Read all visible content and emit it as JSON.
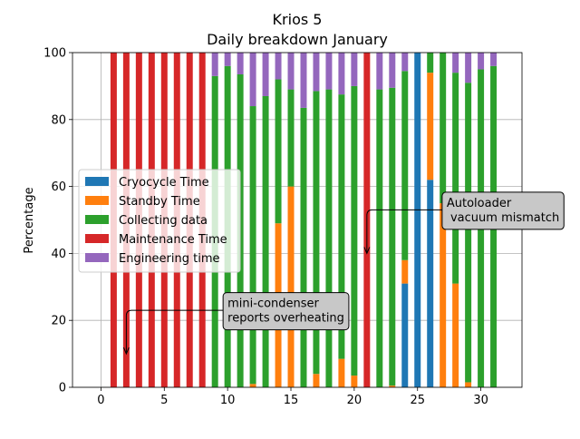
{
  "chart_data": {
    "type": "bar",
    "stacked": true,
    "title": "Krios 5",
    "subtitle": "Daily breakdown January",
    "xlabel": "",
    "ylabel": "Percentage",
    "xlim": [
      -2.25,
      33.25
    ],
    "ylim": [
      0,
      100
    ],
    "xticks": [
      "0",
      "5",
      "10",
      "15",
      "20",
      "25",
      "30"
    ],
    "yticks": [
      "0",
      "20",
      "40",
      "60",
      "80",
      "100"
    ],
    "grid": true,
    "legend_position": "center-left",
    "x": [
      1,
      2,
      3,
      4,
      5,
      6,
      7,
      8,
      9,
      10,
      11,
      12,
      13,
      14,
      15,
      16,
      17,
      18,
      19,
      20,
      21,
      22,
      23,
      24,
      25,
      26,
      27,
      28,
      29,
      30,
      31
    ],
    "series": [
      {
        "name": "Cryocycle Time",
        "color": "#1f77b4",
        "values": [
          0,
          0,
          0,
          0,
          0,
          0,
          0,
          0,
          0,
          0,
          0,
          0,
          0,
          0,
          0,
          0,
          0,
          0,
          0,
          0,
          0,
          0,
          0,
          31,
          100,
          62,
          0,
          0,
          0,
          0,
          0
        ]
      },
      {
        "name": "Standby Time",
        "color": "#ff7f0e",
        "values": [
          0,
          0,
          0,
          0,
          0,
          0,
          0,
          0,
          0,
          0,
          0,
          1,
          0,
          49,
          60,
          0,
          4,
          0,
          8.5,
          3.5,
          0,
          0,
          0.5,
          7,
          0,
          32,
          55,
          31,
          1.5,
          0,
          0
        ]
      },
      {
        "name": "Collecting data",
        "color": "#2ca02c",
        "values": [
          0,
          0,
          0,
          0,
          0,
          0,
          0,
          0,
          93,
          96,
          93.5,
          83,
          87,
          43,
          29,
          83.5,
          84.5,
          89,
          79,
          86.5,
          0,
          89,
          89,
          56.5,
          0,
          6,
          45,
          63,
          89.5,
          95,
          96
        ]
      },
      {
        "name": "Maintenance Time",
        "color": "#d62728",
        "values": [
          100,
          100,
          100,
          100,
          100,
          100,
          100,
          100,
          0,
          0,
          0,
          0,
          0,
          0,
          0,
          0,
          0,
          0,
          0,
          0,
          100,
          0,
          0,
          0,
          0,
          0,
          0,
          0,
          0,
          0,
          0
        ]
      },
      {
        "name": "Engineering time",
        "color": "#9467bd",
        "values": [
          0,
          0,
          0,
          0,
          0,
          0,
          0,
          0,
          7,
          4,
          6.5,
          16,
          13,
          8,
          11,
          16.5,
          11.5,
          11,
          12.5,
          10,
          0,
          11,
          10.5,
          5.5,
          0,
          0,
          0,
          6,
          9,
          5,
          4
        ]
      }
    ],
    "annotations": [
      {
        "text": "mini-condenser\nreports overheating",
        "x": 2,
        "y": 10,
        "text_x": 10,
        "text_y": 23
      },
      {
        "text": "Autoloader\n vacuum mismatch",
        "x": 21,
        "y": 40,
        "text_x": 27.3,
        "text_y": 53
      }
    ]
  }
}
